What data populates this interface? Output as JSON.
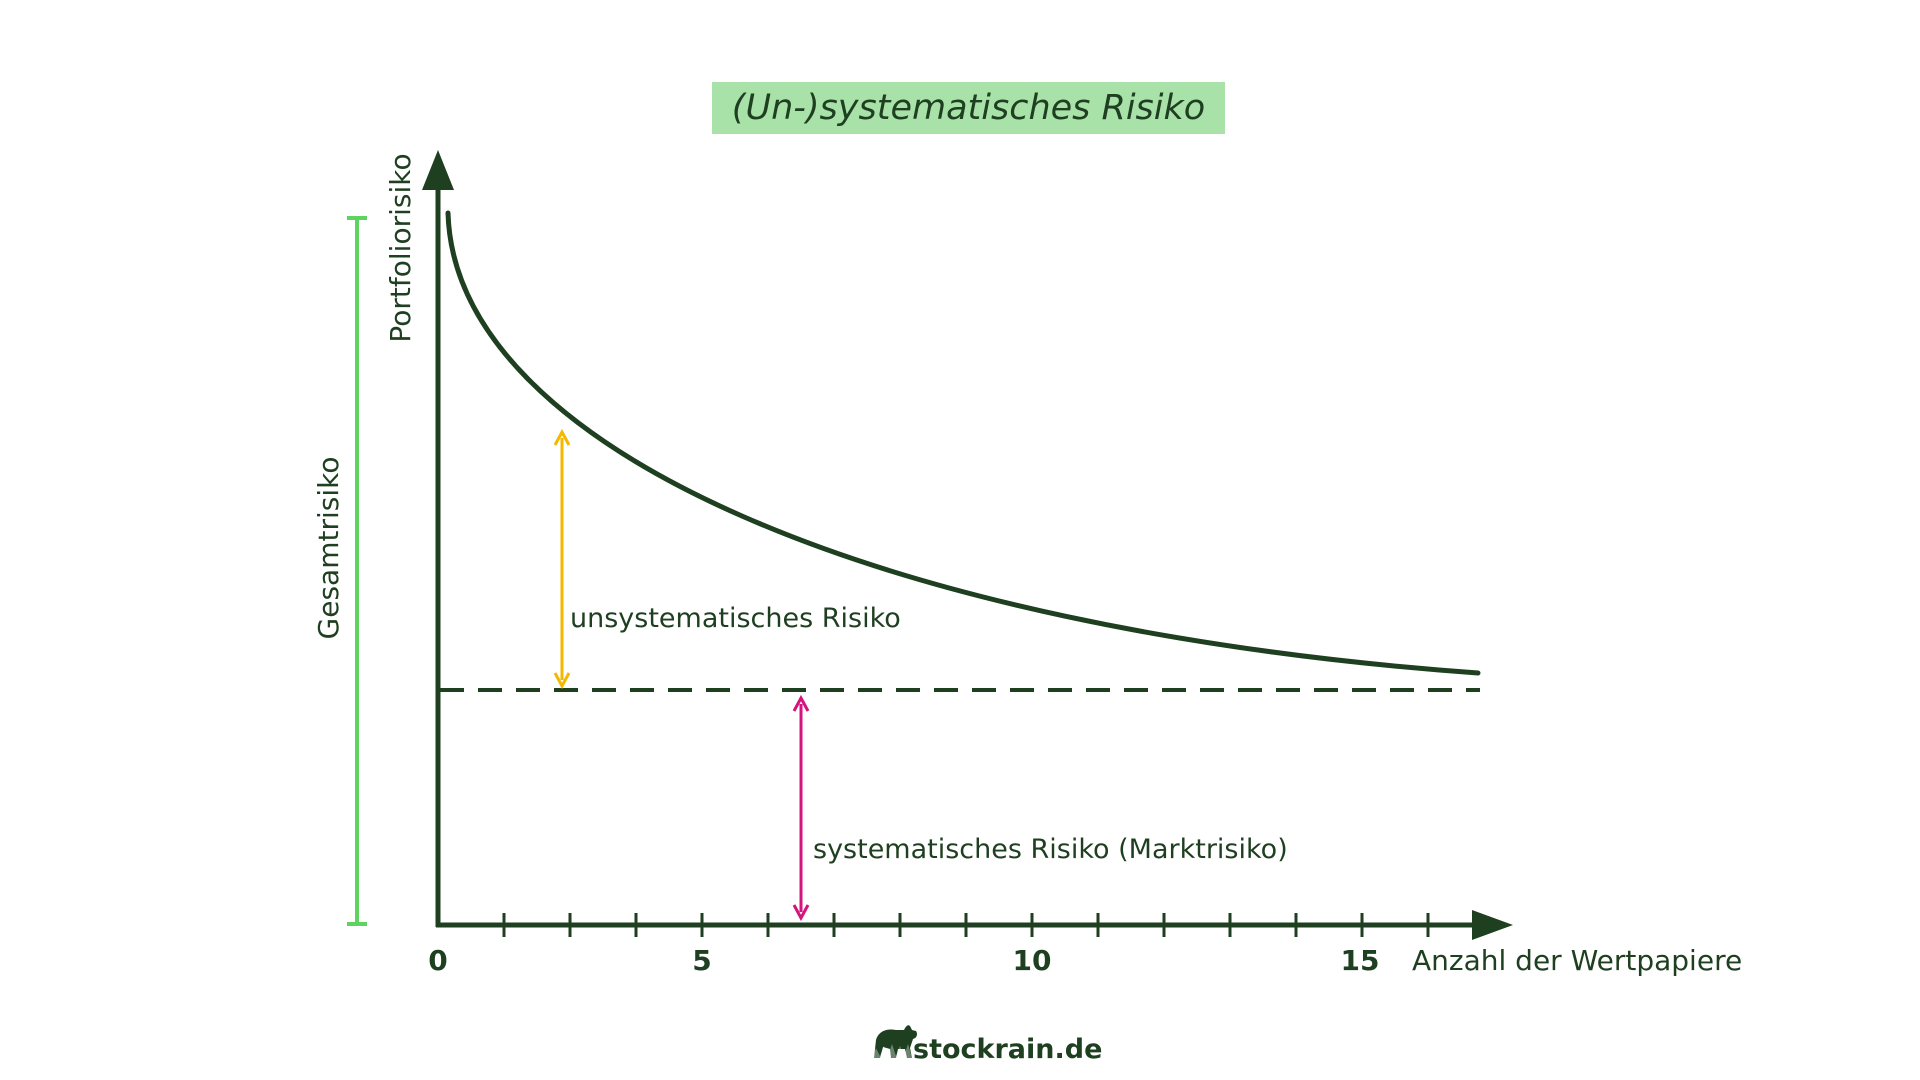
{
  "title": "(Un-)systematisches Risiko",
  "axes": {
    "y_label": "Portfoliorisiko",
    "x_label": "Anzahl der Wertpapiere",
    "x_ticks": [
      "0",
      "5",
      "10",
      "15"
    ]
  },
  "labels": {
    "gesamtrisiko": "Gesamtrisiko",
    "unsystematic": "unsystematisches Risiko",
    "systematic": "systematisches Risiko (Marktrisiko)"
  },
  "logo": {
    "text": "stockrain.de"
  },
  "colors": {
    "dark_green": "#1e3f20",
    "title_bg": "#a8e2a8",
    "gesamt_bar": "#5fd35f",
    "unsystematic_arrow": "#f5b800",
    "systematic_arrow": "#d4137f"
  }
}
